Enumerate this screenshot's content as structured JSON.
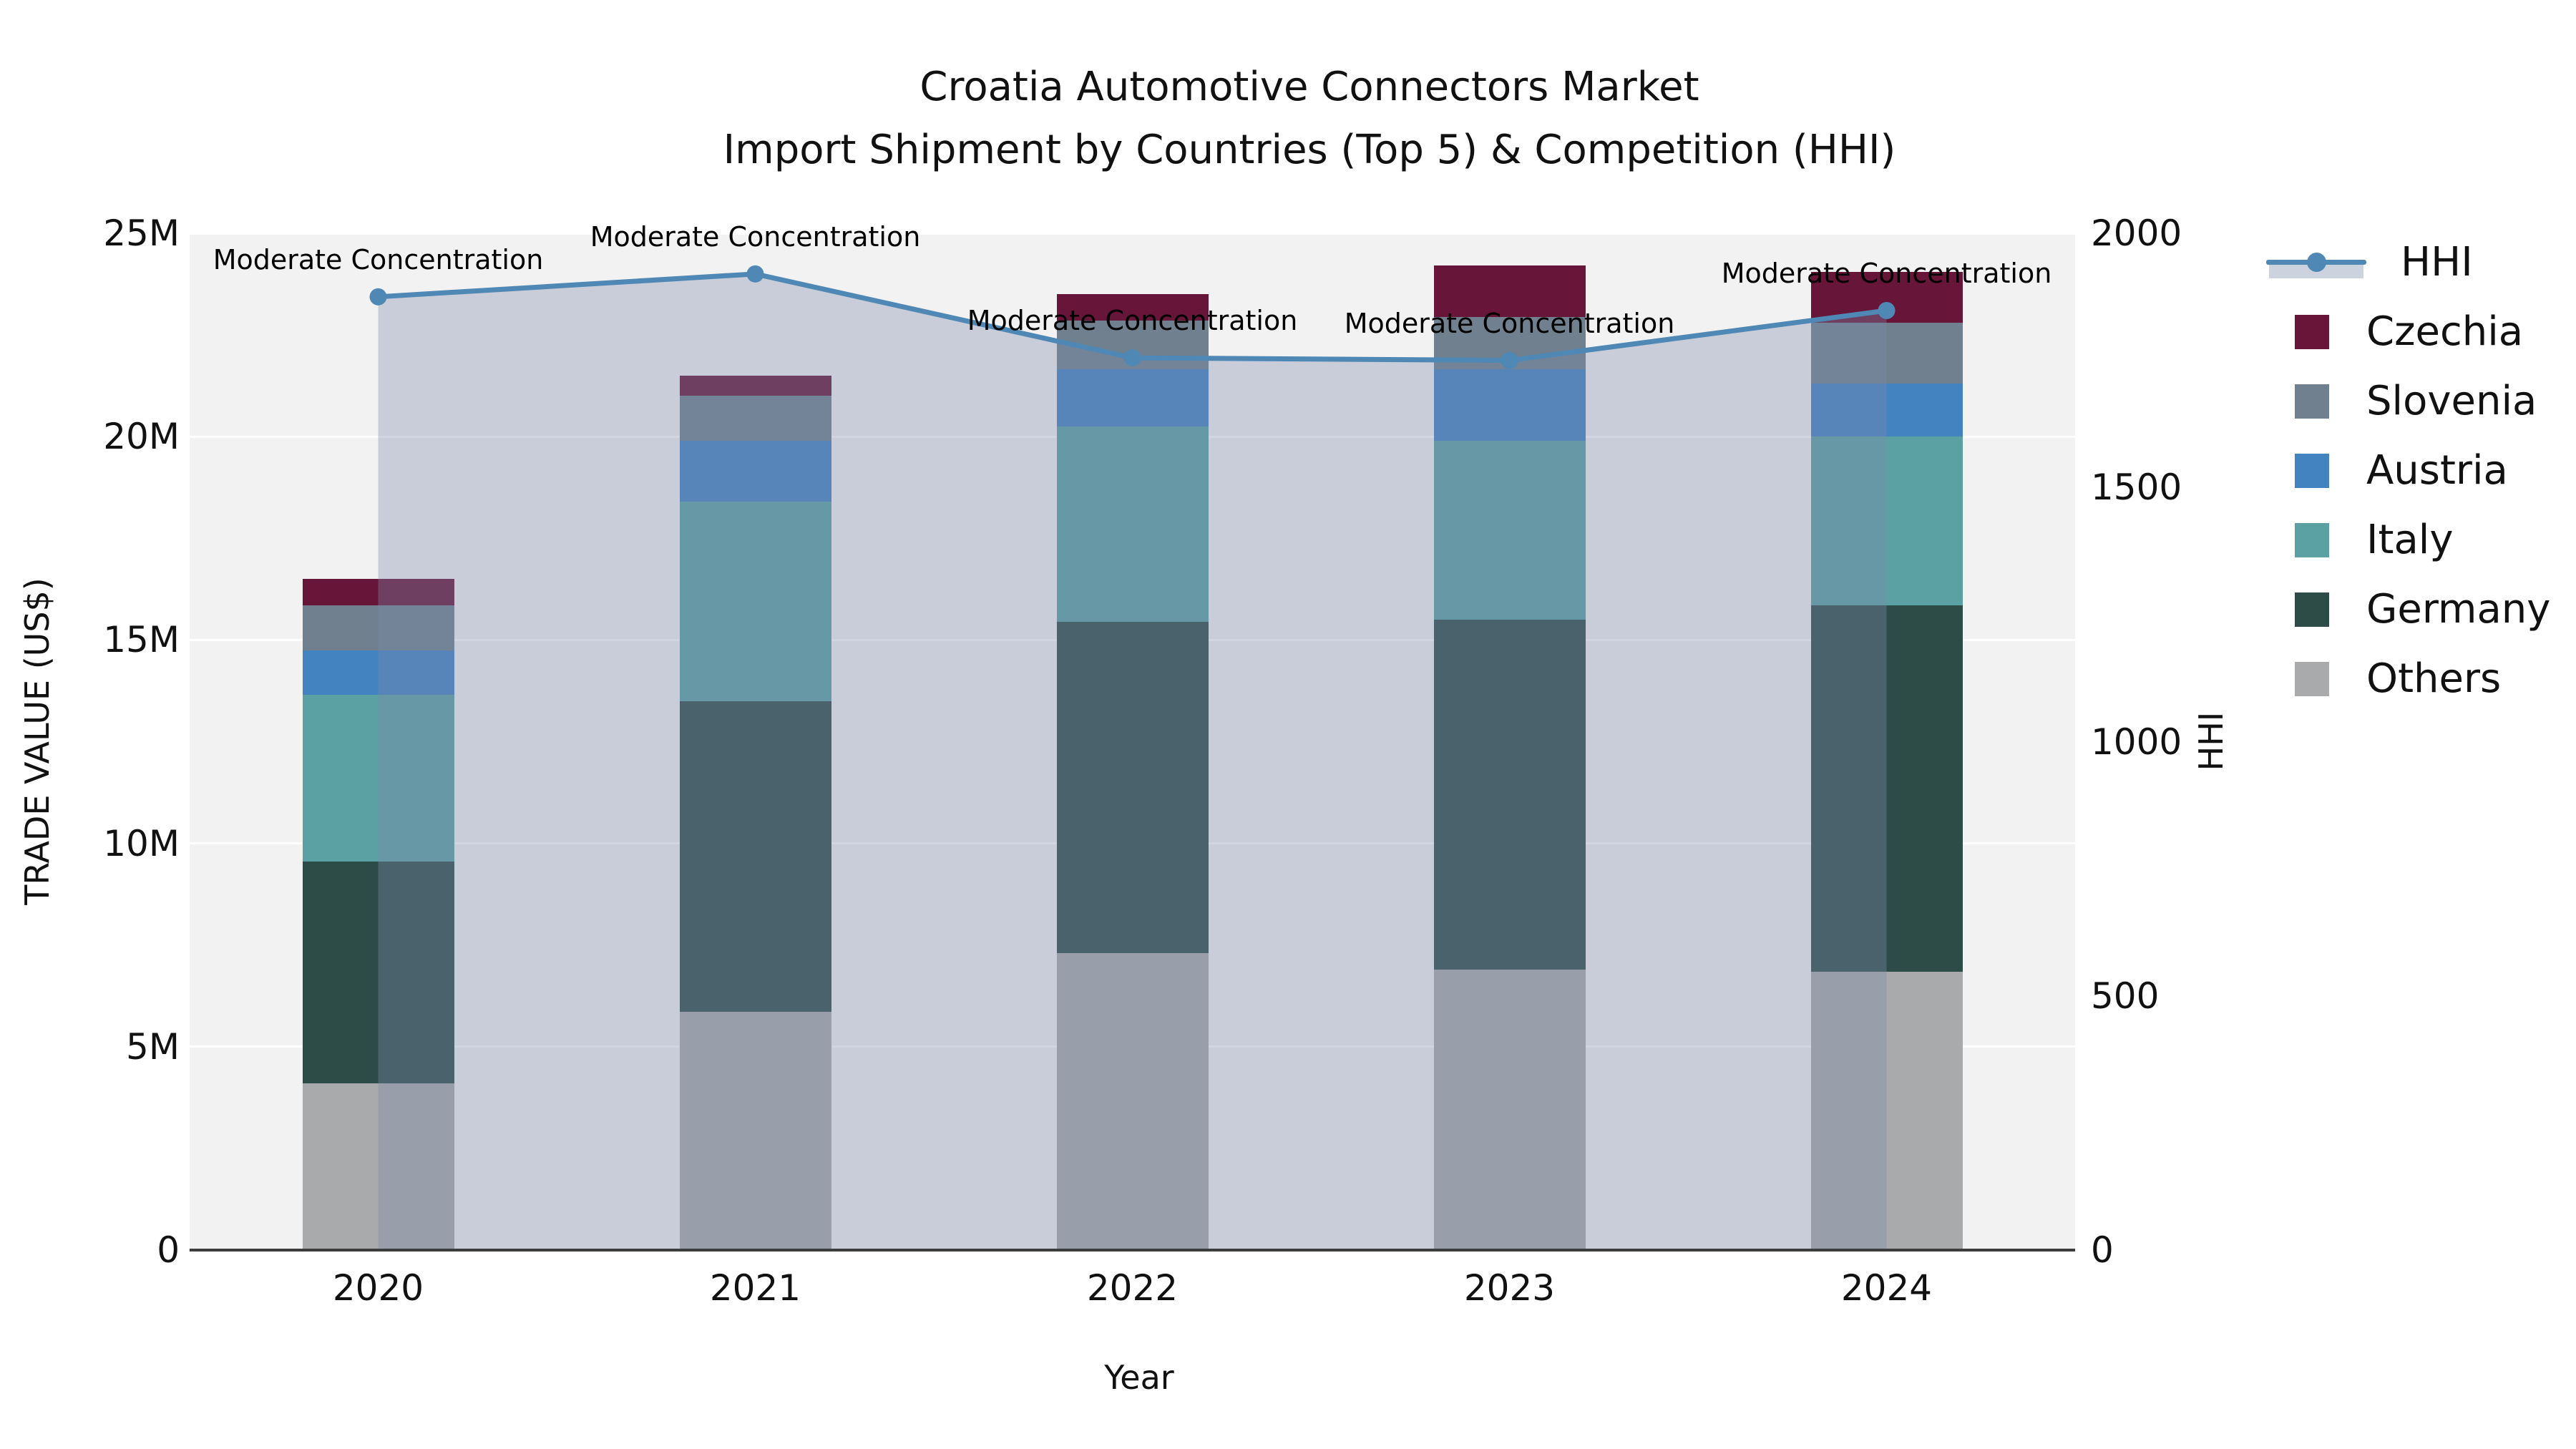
{
  "title": {
    "line1": "Croatia Automotive Connectors Market",
    "line2": "Import Shipment by Countries (Top 5) & Competition (HHI)"
  },
  "colors": {
    "figure_background": "#ffffff",
    "plot_background": "#f2f2f2",
    "gridline": "#ffffff",
    "axis_spine": "#3d3d3d",
    "hhi_line": "#4f87b5",
    "hhi_area_fill": "rgba(124,138,172,0.36)",
    "hhi_legend_patch": "#ccd3de",
    "text": "#111111"
  },
  "legend": {
    "items": [
      {
        "label": "HHI",
        "type": "line",
        "color": "#4f87b5"
      },
      {
        "label": "Czechia",
        "type": "square",
        "color": "#671538"
      },
      {
        "label": "Slovenia",
        "type": "square",
        "color": "#70808e"
      },
      {
        "label": "Austria",
        "type": "square",
        "color": "#4283c0"
      },
      {
        "label": "Italy",
        "type": "square",
        "color": "#5ba0a2"
      },
      {
        "label": "Germany",
        "type": "square",
        "color": "#2d4c47"
      },
      {
        "label": "Others",
        "type": "square",
        "color": "#a9aaab"
      }
    ]
  },
  "chart_data": {
    "type": "combo_stacked_bar_line",
    "categories": [
      "2020",
      "2021",
      "2022",
      "2023",
      "2024"
    ],
    "bar_unit": "USD millions",
    "stack_order_bottom_to_top": [
      "Others",
      "Germany",
      "Italy",
      "Austria",
      "Slovenia",
      "Czechia"
    ],
    "series": [
      {
        "name": "Others",
        "color": "#a9aaab",
        "values": [
          4.1,
          5.85,
          7.3,
          6.9,
          6.85
        ]
      },
      {
        "name": "Germany",
        "color": "#2d4c47",
        "values": [
          5.45,
          7.65,
          8.15,
          8.6,
          9.0
        ]
      },
      {
        "name": "Italy",
        "color": "#5ba0a2",
        "values": [
          4.1,
          4.9,
          4.8,
          4.4,
          4.15
        ]
      },
      {
        "name": "Austria",
        "color": "#4283c0",
        "values": [
          1.1,
          1.5,
          1.4,
          1.75,
          1.3
        ]
      },
      {
        "name": "Slovenia",
        "color": "#70808e",
        "values": [
          1.1,
          1.1,
          1.2,
          1.3,
          1.5
        ]
      },
      {
        "name": "Czechia",
        "color": "#671538",
        "values": [
          0.65,
          0.5,
          0.65,
          1.25,
          1.25
        ]
      }
    ],
    "line_series": {
      "name": "HHI",
      "axis": "right",
      "color": "#4f87b5",
      "area_fill": "rgba(124,138,172,0.36)",
      "values": [
        1875,
        1920,
        1755,
        1750,
        1848
      ]
    },
    "annotations": [
      "Moderate Concentration",
      "Moderate Concentration",
      "Moderate Concentration",
      "Moderate Concentration",
      "Moderate Concentration"
    ],
    "xlabel": "Year",
    "ylabel_left": "TRADE VALUE (US$)",
    "ylabel_right": "HHI",
    "y_left_ticks": [
      "0",
      "5M",
      "10M",
      "15M",
      "20M",
      "25M"
    ],
    "y_left_range_musd": [
      0,
      25
    ],
    "y_right_ticks": [
      "0",
      "500",
      "1000",
      "1500",
      "2000"
    ],
    "y_right_range": [
      0,
      2000
    ],
    "grid": "horizontal",
    "legend_position": "right"
  }
}
